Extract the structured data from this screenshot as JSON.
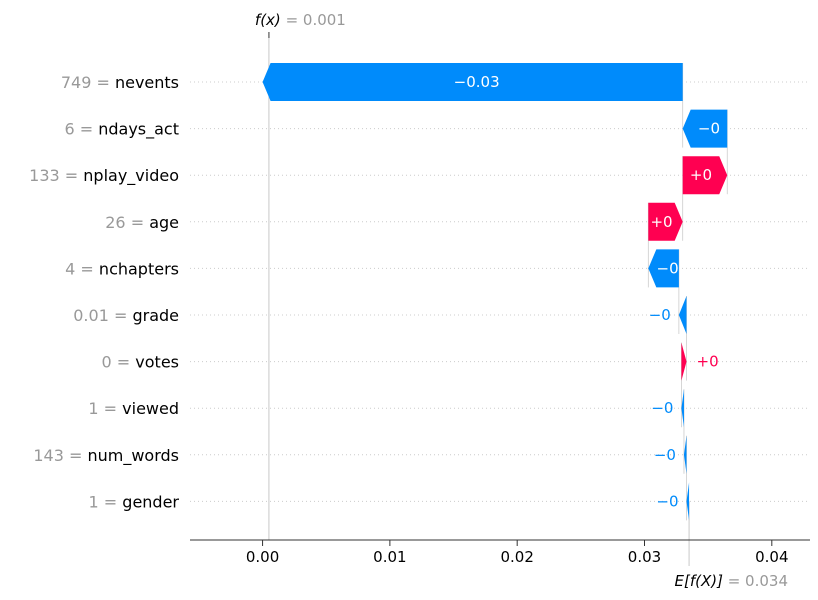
{
  "chart_data": {
    "type": "waterfall",
    "fx": {
      "label": "f(x)",
      "value": "0.001",
      "x": 0.0005
    },
    "base": {
      "label": "E[f(X)]",
      "value": "0.034",
      "x": 0.0335
    },
    "xlim": [
      -0.0057,
      0.043
    ],
    "xticks": [
      {
        "value": 0.0,
        "label": "0.00"
      },
      {
        "value": 0.01,
        "label": "0.01"
      },
      {
        "value": 0.02,
        "label": "0.02"
      },
      {
        "value": 0.03,
        "label": "0.03"
      },
      {
        "value": 0.04,
        "label": "0.04"
      }
    ],
    "features": [
      {
        "value": "749",
        "name": "nevents",
        "shap": -0.033,
        "label": "−0.03",
        "label_pos": "inside"
      },
      {
        "value": "6",
        "name": "ndays_act",
        "shap": -0.0035,
        "label": "−0",
        "label_pos": "inside"
      },
      {
        "value": "133",
        "name": "nplay_video",
        "shap": 0.0035,
        "label": "+0",
        "label_pos": "inside"
      },
      {
        "value": "26",
        "name": "age",
        "shap": 0.0027,
        "label": "+0",
        "label_pos": "inside"
      },
      {
        "value": "4",
        "name": "nchapters",
        "shap": -0.0024,
        "label": "−0",
        "label_pos": "inside"
      },
      {
        "value": "0.01",
        "name": "grade",
        "shap": -0.0006,
        "label": "−0",
        "label_pos": "outside"
      },
      {
        "value": "0",
        "name": "votes",
        "shap": 0.0004,
        "label": "+0",
        "label_pos": "outside"
      },
      {
        "value": "1",
        "name": "viewed",
        "shap": -0.0002,
        "label": "−0",
        "label_pos": "outside"
      },
      {
        "value": "143",
        "name": "num_words",
        "shap": -0.0002,
        "label": "−0",
        "label_pos": "outside"
      },
      {
        "value": "1",
        "name": "gender",
        "shap": -0.0002,
        "label": "−0",
        "label_pos": "outside"
      }
    ],
    "colors": {
      "positive": "#ff0051",
      "negative": "#008bfb"
    }
  }
}
